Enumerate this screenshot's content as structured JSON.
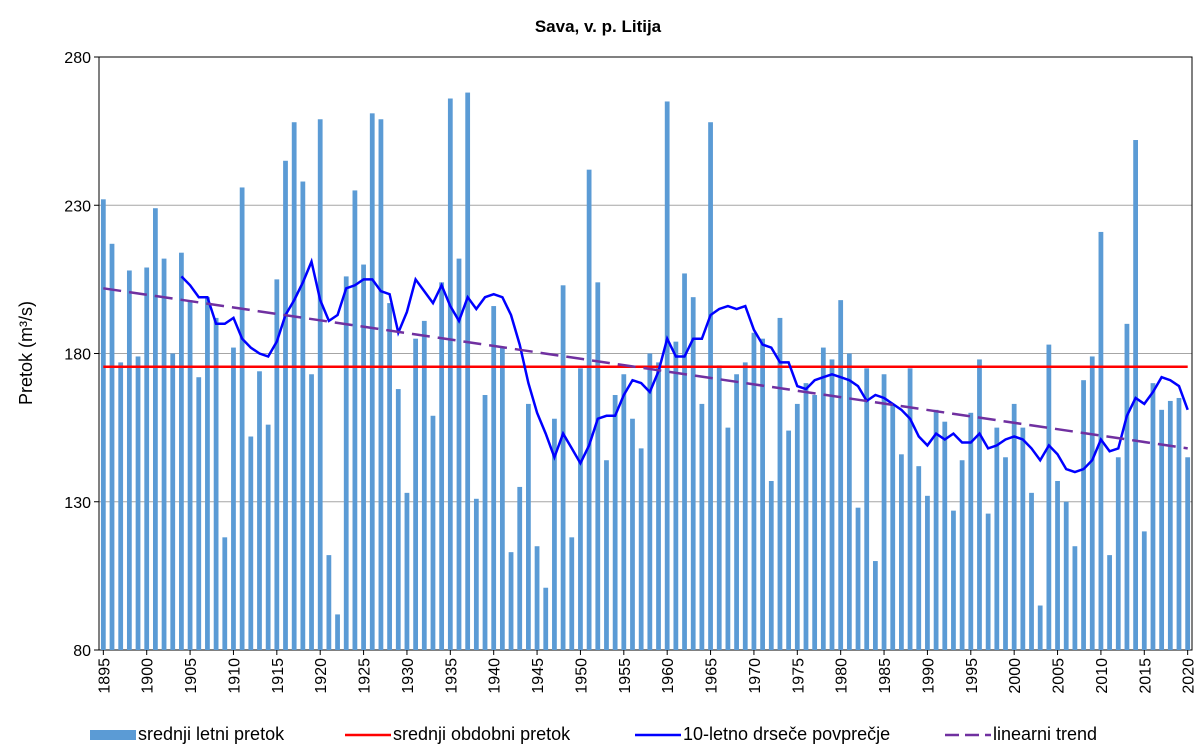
{
  "chart_data": {
    "type": "bar-line",
    "title": "Sava, v. p. Litija",
    "ylabel": "Pretok (m³/s)",
    "ylim": [
      80,
      280
    ],
    "yticks": [
      80,
      130,
      180,
      230,
      280
    ],
    "xlim": [
      1894.5,
      2020.5
    ],
    "xticks": [
      1895,
      1900,
      1905,
      1910,
      1915,
      1920,
      1925,
      1930,
      1935,
      1940,
      1945,
      1950,
      1955,
      1960,
      1965,
      1970,
      1975,
      1980,
      1985,
      1990,
      1995,
      2000,
      2005,
      2010,
      2015,
      2020
    ],
    "grid": true,
    "legend": "bottom",
    "x": [
      1895,
      1896,
      1897,
      1898,
      1899,
      1900,
      1901,
      1902,
      1903,
      1904,
      1905,
      1906,
      1907,
      1908,
      1909,
      1910,
      1911,
      1912,
      1913,
      1914,
      1915,
      1916,
      1917,
      1918,
      1919,
      1920,
      1921,
      1922,
      1923,
      1924,
      1925,
      1926,
      1927,
      1928,
      1929,
      1930,
      1931,
      1932,
      1933,
      1934,
      1935,
      1936,
      1937,
      1938,
      1939,
      1940,
      1941,
      1942,
      1943,
      1944,
      1945,
      1946,
      1947,
      1948,
      1949,
      1950,
      1951,
      1952,
      1953,
      1954,
      1955,
      1956,
      1957,
      1958,
      1959,
      1960,
      1961,
      1962,
      1963,
      1964,
      1965,
      1966,
      1967,
      1968,
      1969,
      1970,
      1971,
      1972,
      1973,
      1974,
      1975,
      1976,
      1977,
      1978,
      1979,
      1980,
      1981,
      1982,
      1983,
      1984,
      1985,
      1986,
      1987,
      1988,
      1989,
      1990,
      1991,
      1992,
      1993,
      1994,
      1995,
      1996,
      1997,
      1998,
      1999,
      2000,
      2001,
      2002,
      2003,
      2004,
      2005,
      2006,
      2007,
      2008,
      2009,
      2010,
      2011,
      2012,
      2013,
      2014,
      2015,
      2016,
      2017,
      2018,
      2019,
      2020
    ],
    "series": [
      {
        "name": "srednji letni pretok",
        "kind": "bar",
        "color": "#5b9bd5",
        "values": [
          232,
          217,
          177,
          208,
          179,
          209,
          229,
          212,
          180,
          214,
          198,
          172,
          199,
          192,
          118,
          182,
          236,
          152,
          174,
          156,
          205,
          245,
          258,
          238,
          173,
          259,
          112,
          92,
          206,
          235,
          210,
          261,
          259,
          197,
          168,
          133,
          185,
          191,
          159,
          204,
          266,
          212,
          268,
          131,
          166,
          196,
          182,
          113,
          135,
          163,
          115,
          101,
          158,
          203,
          118,
          175,
          242,
          204,
          144,
          166,
          173,
          158,
          148,
          180,
          177,
          265,
          184,
          207,
          199,
          163,
          258,
          176,
          155,
          173,
          177,
          187,
          185,
          137,
          192,
          154,
          163,
          170,
          166,
          182,
          178,
          198,
          180,
          128,
          175,
          110,
          173,
          163,
          146,
          175,
          142,
          132,
          161,
          157,
          127,
          144,
          160,
          178,
          126,
          155,
          145,
          163,
          155,
          133,
          95,
          183,
          137,
          130,
          115,
          171,
          179,
          221,
          112,
          145,
          190,
          252,
          120,
          170,
          161,
          164,
          165,
          145
        ]
      },
      {
        "name": "srednji obdobni pretok",
        "kind": "line",
        "color": "#ff0000",
        "x": [
          1895,
          2020
        ],
        "values": [
          175.5,
          175.5
        ]
      },
      {
        "name": "10-letno drseče povprečje",
        "kind": "line",
        "color": "#0000ff",
        "values": [
          null,
          null,
          null,
          null,
          null,
          null,
          null,
          null,
          null,
          206,
          203,
          199,
          199,
          190,
          190,
          192,
          185,
          182,
          180,
          179,
          184,
          193,
          198,
          204,
          211,
          198,
          191,
          193,
          202,
          203,
          205,
          205,
          201,
          200,
          187,
          194,
          205,
          201,
          197,
          203,
          196,
          191,
          199,
          195,
          199,
          200,
          199,
          193,
          183,
          170,
          160,
          153,
          145,
          153,
          148,
          143,
          149,
          158,
          159,
          159,
          166,
          171,
          170,
          167,
          174,
          185,
          179,
          179,
          185,
          185,
          193,
          195,
          196,
          195,
          196,
          188,
          183,
          182,
          177,
          177,
          169,
          168,
          171,
          172,
          173,
          172,
          171,
          169,
          164,
          166,
          165,
          163,
          161,
          158,
          152,
          149,
          153,
          151,
          153,
          150,
          150,
          153,
          148,
          149,
          151,
          152,
          151,
          148,
          144,
          149,
          146,
          141,
          140,
          141,
          144,
          151,
          147,
          148,
          159,
          165,
          163,
          167,
          172,
          171,
          169,
          161
        ]
      },
      {
        "name": "linearni trend",
        "kind": "dashed",
        "color": "#7030a0",
        "x": [
          1895,
          2020
        ],
        "values": [
          202,
          148
        ]
      }
    ]
  }
}
